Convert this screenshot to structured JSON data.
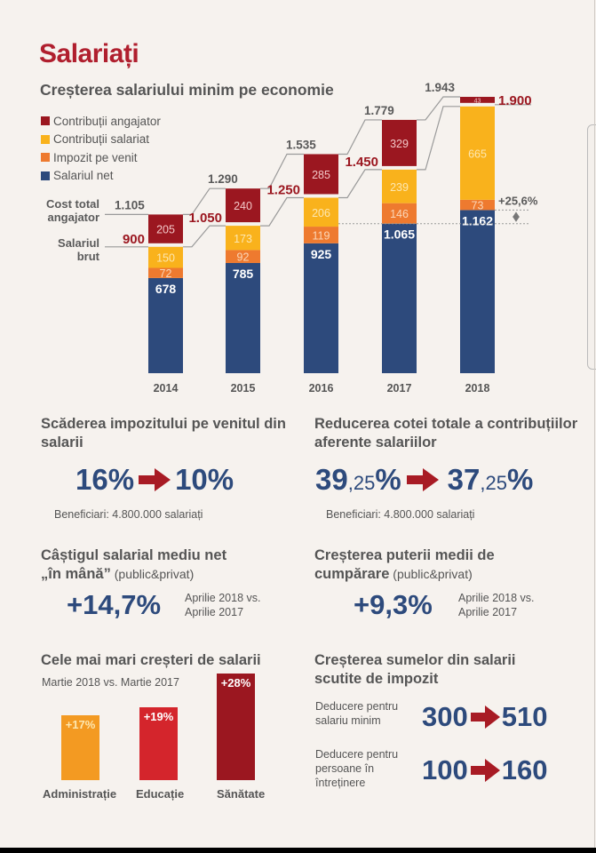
{
  "header": {
    "title": "Salariați",
    "subtitle": "Creșterea salariului minim pe economie"
  },
  "colors": {
    "employer_contrib": "#9b1720",
    "employee_contrib": "#f9b21c",
    "income_tax": "#ee7a2f",
    "net_salary": "#2d4a7c",
    "accent_red": "#b01f2e"
  },
  "side_labels": {
    "total_cost": "Cost total angajator",
    "gross": "Salariul brut"
  },
  "chart_data": {
    "type": "bar",
    "stacked": true,
    "title": "Creșterea salariului minim pe economie",
    "categories": [
      "2014",
      "2015",
      "2016",
      "2017",
      "2018"
    ],
    "legend": [
      "Contribuții angajator",
      "Contribuții salariat",
      "Impozit pe venit",
      "Salariul net"
    ],
    "series": [
      {
        "name": "Salariul net",
        "values": [
          678,
          785,
          925,
          1065,
          1162
        ],
        "labels": [
          "678",
          "785",
          "925",
          "1.065",
          "1.162"
        ]
      },
      {
        "name": "Impozit pe venit",
        "values": [
          72,
          92,
          119,
          146,
          73
        ],
        "labels": [
          "72",
          "92",
          "119",
          "146",
          "73"
        ]
      },
      {
        "name": "Contribuții salariat",
        "values": [
          150,
          173,
          206,
          239,
          665
        ],
        "labels": [
          "150",
          "173",
          "206",
          "239",
          "665"
        ]
      },
      {
        "name": "Contribuții angajator",
        "values": [
          205,
          240,
          285,
          329,
          43
        ],
        "labels": [
          "205",
          "240",
          "285",
          "329",
          "43"
        ]
      }
    ],
    "gross_totals": [
      900,
      1050,
      1250,
      1450,
      1900
    ],
    "gross_labels": [
      "900",
      "1.050",
      "1.250",
      "1.450",
      "1.900"
    ],
    "cost_totals": [
      1105,
      1290,
      1535,
      1779,
      1943
    ],
    "cost_labels": [
      "1.105",
      "1.290",
      "1.535",
      "1.779",
      "1.943"
    ],
    "annotation": "+25,6%",
    "ylim": [
      0,
      2000
    ]
  },
  "tax_section": {
    "title": "Scăderea impozitului pe venitul din salarii",
    "from": "16%",
    "to": "10%",
    "note": "Beneficiari: 4.800.000 salariați"
  },
  "contrib_section": {
    "title": "Reducerea cotei totale a contribuțiilor aferente salariilor",
    "from_int": "39",
    "from_dec": ",25",
    "to_int": "37",
    "to_dec": ",25",
    "pct": "%",
    "note": "Beneficiari: 4.800.000 salariați"
  },
  "net_gain": {
    "title_line1": "Câștigul salarial mediu net",
    "title_line2": "„în mână”",
    "qualifier": " (public&privat)",
    "value": "+14,7%",
    "period_line1": "Aprilie 2018 vs.",
    "period_line2": "Aprilie 2017"
  },
  "purchasing": {
    "title_line1": "Creșterea puterii medii de",
    "title_line2": "cumpărare",
    "qualifier": " (public&privat)",
    "value": "+9,3%",
    "period_line1": "Aprilie 2018 vs.",
    "period_line2": "Aprilie 2017"
  },
  "sectors": {
    "title": "Cele mai mari creșteri de salarii",
    "subtitle": "Martie 2018 vs. Martie 2017",
    "items": [
      {
        "label": "Administrație",
        "value": 17,
        "text": "+17%",
        "color": "#f39a22"
      },
      {
        "label": "Educație",
        "value": 19,
        "text": "+19%",
        "color": "#d4252c"
      },
      {
        "label": "Sănătate",
        "value": 28,
        "text": "+28%",
        "color": "#9b1720"
      }
    ]
  },
  "deductions": {
    "title_line1": "Creșterea sumelor din salarii",
    "title_line2": "scutite de impozit",
    "rows": [
      {
        "label_line1": "Deducere pentru",
        "label_line2": "salariu minim",
        "label_line3": "",
        "from": "300",
        "to": "510"
      },
      {
        "label_line1": "Deducere pentru",
        "label_line2": "persoane în",
        "label_line3": "întreținere",
        "from": "100",
        "to": "160"
      }
    ]
  }
}
